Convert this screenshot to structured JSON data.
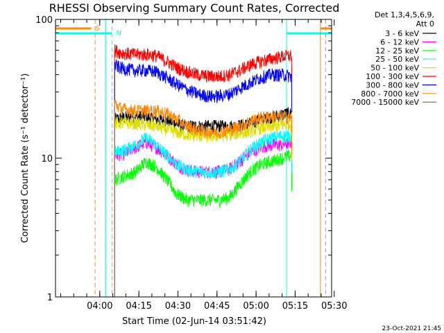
{
  "chart_data": {
    "type": "line",
    "title": "RHESSI Observing Summary Count Rates, Corrected",
    "xlabel": "Start Time (02-Jun-14 03:51:42)",
    "ylabel": "Corrected Count Rate (s⁻¹ detector⁻¹)",
    "x_range_minutes": [
      -8.7,
      97.3
    ],
    "x_ticks": [
      {
        "label": "04:00",
        "minutes": 8.3
      },
      {
        "label": "04:15",
        "minutes": 23.3
      },
      {
        "label": "04:30",
        "minutes": 38.3
      },
      {
        "label": "04:45",
        "minutes": 53.3
      },
      {
        "label": "05:00",
        "minutes": 68.3
      },
      {
        "label": "05:15",
        "minutes": 83.3
      },
      {
        "label": "05:30",
        "minutes": 98.3
      }
    ],
    "y_scale": "log",
    "ylim": [
      1,
      100
    ],
    "y_ticks": [
      {
        "label": "1",
        "value": 1
      },
      {
        "label": "10",
        "value": 10
      },
      {
        "label": "100",
        "value": 100
      }
    ],
    "legend_header": [
      "Det 1,3,4,5,6,9,",
      "Att 0"
    ],
    "legend_placement": "right",
    "series": [
      {
        "name": "3 - 6 keV",
        "color": "#000000",
        "points": [
          [
            14,
            19
          ],
          [
            20,
            20
          ],
          [
            25,
            20
          ],
          [
            30,
            19
          ],
          [
            35,
            18.5
          ],
          [
            40,
            17
          ],
          [
            45,
            17
          ],
          [
            50,
            17
          ],
          [
            55,
            17
          ],
          [
            60,
            17
          ],
          [
            65,
            17.5
          ],
          [
            70,
            19
          ],
          [
            75,
            20
          ],
          [
            80,
            21
          ],
          [
            82,
            21
          ]
        ]
      },
      {
        "name": "6 - 12 keV",
        "color": "#ff00ff",
        "points": [
          [
            14,
            10.5
          ],
          [
            18,
            10.8
          ],
          [
            22,
            12
          ],
          [
            26,
            13
          ],
          [
            30,
            12
          ],
          [
            34,
            10.5
          ],
          [
            38,
            9
          ],
          [
            42,
            8.2
          ],
          [
            46,
            8
          ],
          [
            50,
            8
          ],
          [
            54,
            8
          ],
          [
            58,
            8.3
          ],
          [
            62,
            9.5
          ],
          [
            66,
            11
          ],
          [
            70,
            12
          ],
          [
            74,
            12.5
          ],
          [
            78,
            12.5
          ],
          [
            82,
            13
          ]
        ]
      },
      {
        "name": "12 - 25 keV",
        "color": "#00ff00",
        "points": [
          [
            14,
            7
          ],
          [
            18,
            7.5
          ],
          [
            22,
            8
          ],
          [
            26,
            9.5
          ],
          [
            30,
            8.7
          ],
          [
            34,
            7
          ],
          [
            38,
            5.5
          ],
          [
            42,
            5
          ],
          [
            46,
            5
          ],
          [
            50,
            5
          ],
          [
            54,
            5
          ],
          [
            58,
            5.2
          ],
          [
            62,
            6.5
          ],
          [
            66,
            8
          ],
          [
            70,
            9
          ],
          [
            74,
            9.5
          ],
          [
            78,
            10
          ],
          [
            82,
            10.5
          ]
        ]
      },
      {
        "name": "25 - 50 keV",
        "color": "#00ffff",
        "points": [
          [
            14,
            11
          ],
          [
            18,
            11.5
          ],
          [
            22,
            12.5
          ],
          [
            26,
            14
          ],
          [
            30,
            12.5
          ],
          [
            34,
            10.5
          ],
          [
            38,
            9
          ],
          [
            42,
            8.2
          ],
          [
            46,
            8
          ],
          [
            50,
            8
          ],
          [
            54,
            8
          ],
          [
            58,
            8.3
          ],
          [
            62,
            9.5
          ],
          [
            66,
            11.5
          ],
          [
            70,
            13
          ],
          [
            74,
            14
          ],
          [
            78,
            14.5
          ],
          [
            82,
            14.5
          ]
        ]
      },
      {
        "name": "50 - 100 keV",
        "color": "#dddd00",
        "points": [
          [
            14,
            18
          ],
          [
            20,
            18
          ],
          [
            25,
            17.5
          ],
          [
            30,
            17
          ],
          [
            35,
            16
          ],
          [
            40,
            15
          ],
          [
            45,
            14.5
          ],
          [
            50,
            14.5
          ],
          [
            55,
            14.5
          ],
          [
            60,
            15
          ],
          [
            65,
            15.5
          ],
          [
            70,
            16.5
          ],
          [
            75,
            17
          ],
          [
            80,
            17.5
          ],
          [
            82,
            17.5
          ]
        ]
      },
      {
        "name": "100 - 300 keV",
        "color": "#ff0000",
        "points": [
          [
            14,
            60
          ],
          [
            16,
            58
          ],
          [
            18,
            57
          ],
          [
            22,
            56
          ],
          [
            26,
            56
          ],
          [
            30,
            55
          ],
          [
            34,
            50
          ],
          [
            38,
            45
          ],
          [
            42,
            42
          ],
          [
            46,
            40
          ],
          [
            50,
            39
          ],
          [
            54,
            39
          ],
          [
            58,
            40
          ],
          [
            62,
            43
          ],
          [
            66,
            47
          ],
          [
            70,
            50
          ],
          [
            74,
            52
          ],
          [
            78,
            54
          ],
          [
            82,
            55
          ]
        ]
      },
      {
        "name": "300 - 800 keV",
        "color": "#0000ff",
        "points": [
          [
            14,
            47
          ],
          [
            16,
            45
          ],
          [
            18,
            44
          ],
          [
            22,
            43
          ],
          [
            26,
            43
          ],
          [
            30,
            42
          ],
          [
            34,
            38
          ],
          [
            38,
            34
          ],
          [
            42,
            31
          ],
          [
            46,
            29
          ],
          [
            50,
            28
          ],
          [
            54,
            28
          ],
          [
            58,
            29
          ],
          [
            62,
            32
          ],
          [
            66,
            35
          ],
          [
            70,
            38
          ],
          [
            74,
            40
          ],
          [
            78,
            40
          ],
          [
            82,
            39
          ]
        ]
      },
      {
        "name": "800 - 7000 keV",
        "color": "#ff8800",
        "points": [
          [
            14,
            25
          ],
          [
            16,
            23
          ],
          [
            18,
            22.5
          ],
          [
            22,
            22
          ],
          [
            26,
            22
          ],
          [
            30,
            22
          ],
          [
            34,
            21
          ],
          [
            38,
            19
          ],
          [
            42,
            17
          ],
          [
            46,
            16
          ],
          [
            50,
            15.5
          ],
          [
            54,
            15.5
          ],
          [
            58,
            16
          ],
          [
            62,
            17
          ],
          [
            66,
            18.5
          ],
          [
            70,
            19.5
          ],
          [
            74,
            20
          ],
          [
            78,
            20
          ],
          [
            82,
            19.5
          ]
        ]
      },
      {
        "name": "7000 - 15000 keV",
        "color": "#886600",
        "points": []
      }
    ],
    "state_bars": [
      {
        "label": "S",
        "color": "#ff8800",
        "on": [
          [
            -8.7,
            5
          ],
          [
            93,
            97.3
          ]
        ]
      },
      {
        "label": "N",
        "color": "#00ffff",
        "on": [
          [
            -8.7,
            13
          ],
          [
            80,
            97.3
          ]
        ]
      }
    ],
    "vertical_markers": [
      {
        "minutes": 6.5,
        "color": "#ff8800",
        "style": "dashed"
      },
      {
        "minutes": 13.0,
        "color": "#00ffff",
        "style": "dashed"
      },
      {
        "minutes": 10.5,
        "color": "#ff8800",
        "style": "solid"
      },
      {
        "minutes": 10.5,
        "color": "#00ffff",
        "style": "solid"
      },
      {
        "minutes": 80.0,
        "color": "#00ffff",
        "style": "solid"
      },
      {
        "minutes": 93.0,
        "color": "#ff8800",
        "style": "solid"
      },
      {
        "minutes": 95.0,
        "color": "#ff8800",
        "style": "dashed"
      }
    ]
  },
  "footer": {
    "timestamp": "23-Oct-2021 21:45"
  }
}
